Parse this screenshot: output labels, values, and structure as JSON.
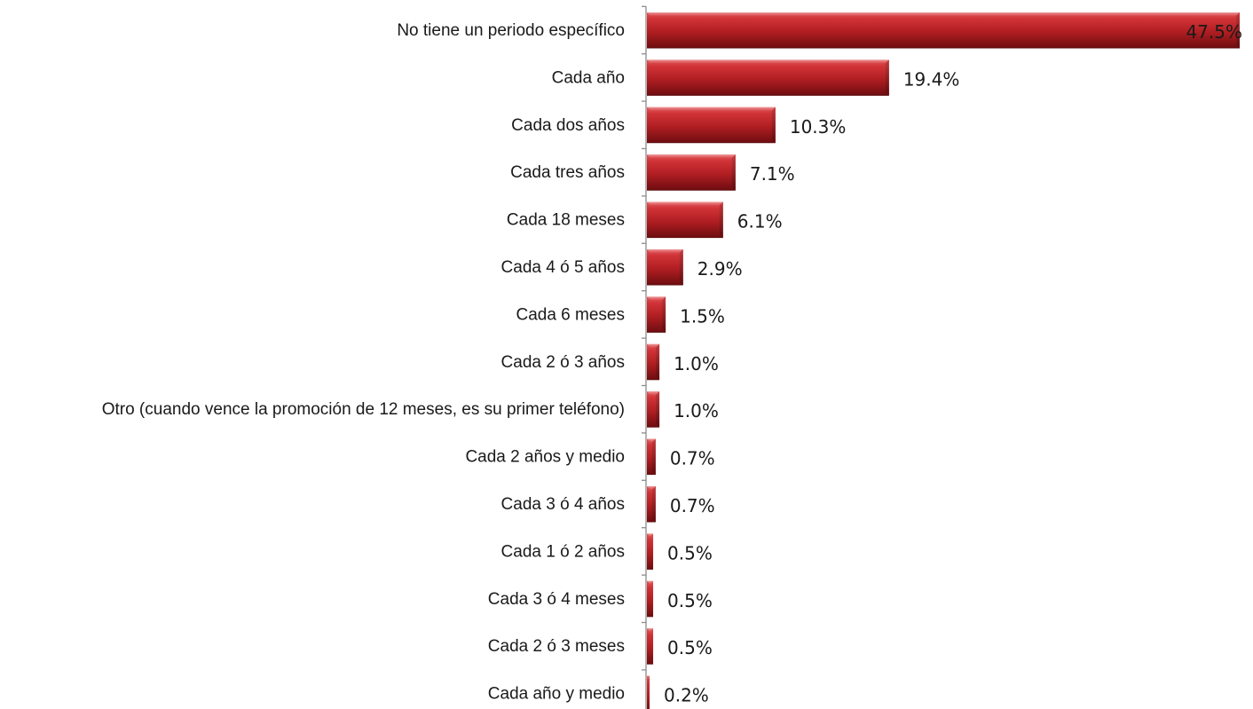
{
  "chart_data": {
    "type": "bar",
    "orientation": "horizontal",
    "categories": [
      "No tiene un periodo específico",
      "Cada año",
      "Cada dos años",
      "Cada tres años",
      "Cada 18 meses",
      "Cada 4 ó 5 años",
      "Cada 6 meses",
      "Cada 2 ó 3 años",
      "Otro (cuando vence la promoción de 12 meses, es su primer teléfono)",
      "Cada 2 años y medio",
      "Cada 3 ó 4 años",
      "Cada 1 ó 2 años",
      "Cada 3 ó 4 meses",
      "Cada 2 ó 3 meses",
      "Cada año y medio"
    ],
    "values": [
      47.5,
      19.4,
      10.3,
      7.1,
      6.1,
      2.9,
      1.5,
      1.0,
      1.0,
      0.7,
      0.7,
      0.5,
      0.5,
      0.5,
      0.2
    ],
    "value_labels": [
      "47.5%",
      "19.4%",
      "10.3%",
      "7.1%",
      "6.1%",
      "2.9%",
      "1.5%",
      "1.0%",
      "1.0%",
      "0.7%",
      "0.7%",
      "0.5%",
      "0.5%",
      "0.5%",
      "0.2%"
    ],
    "unit": "%",
    "xlim": [
      0,
      47.5
    ],
    "grid": false,
    "legend": "none",
    "colors": {
      "bar_base": "#b01e22",
      "bar_light": "#e0595c",
      "bar_mid": "#c9292d",
      "bar_dark": "#6e0d10",
      "bar_top_face": "#e8777a",
      "axis": "#8c8c8c",
      "text": "#1a1a1a"
    }
  }
}
